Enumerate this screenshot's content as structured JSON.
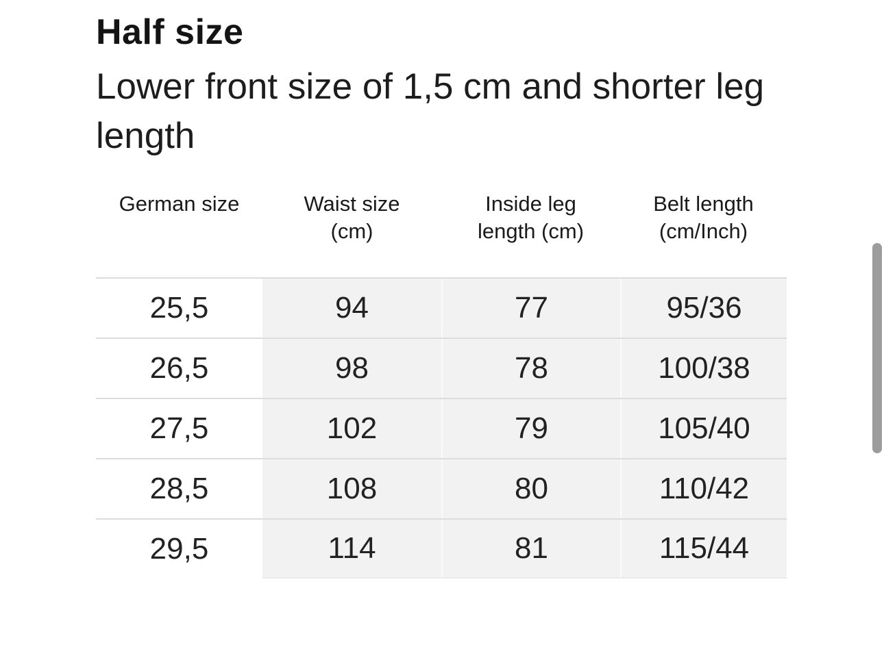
{
  "page": {
    "title": "Half size",
    "subtitle": "Lower front size of 1,5 cm and shorter leg length"
  },
  "table": {
    "headers": [
      {
        "line1": "German size",
        "line2": ""
      },
      {
        "line1": "Waist size",
        "line2": "(cm)"
      },
      {
        "line1": "Inside leg",
        "line2": "length (cm)"
      },
      {
        "line1": "Belt length",
        "line2": "(cm/Inch)"
      }
    ],
    "rows": [
      [
        "25,5",
        "94",
        "77",
        "95/36"
      ],
      [
        "26,5",
        "98",
        "78",
        "100/38"
      ],
      [
        "27,5",
        "102",
        "79",
        "105/40"
      ],
      [
        "28,5",
        "108",
        "80",
        "110/42"
      ],
      [
        "29,5",
        "114",
        "81",
        "115/44"
      ]
    ]
  },
  "colors": {
    "cell_background": "#f2f2f2",
    "row_divider": "#dcdcdc",
    "column_gap_line": "#fafafa",
    "text": "#1a1a1a",
    "scrollbar_thumb": "#9c9c9c"
  }
}
